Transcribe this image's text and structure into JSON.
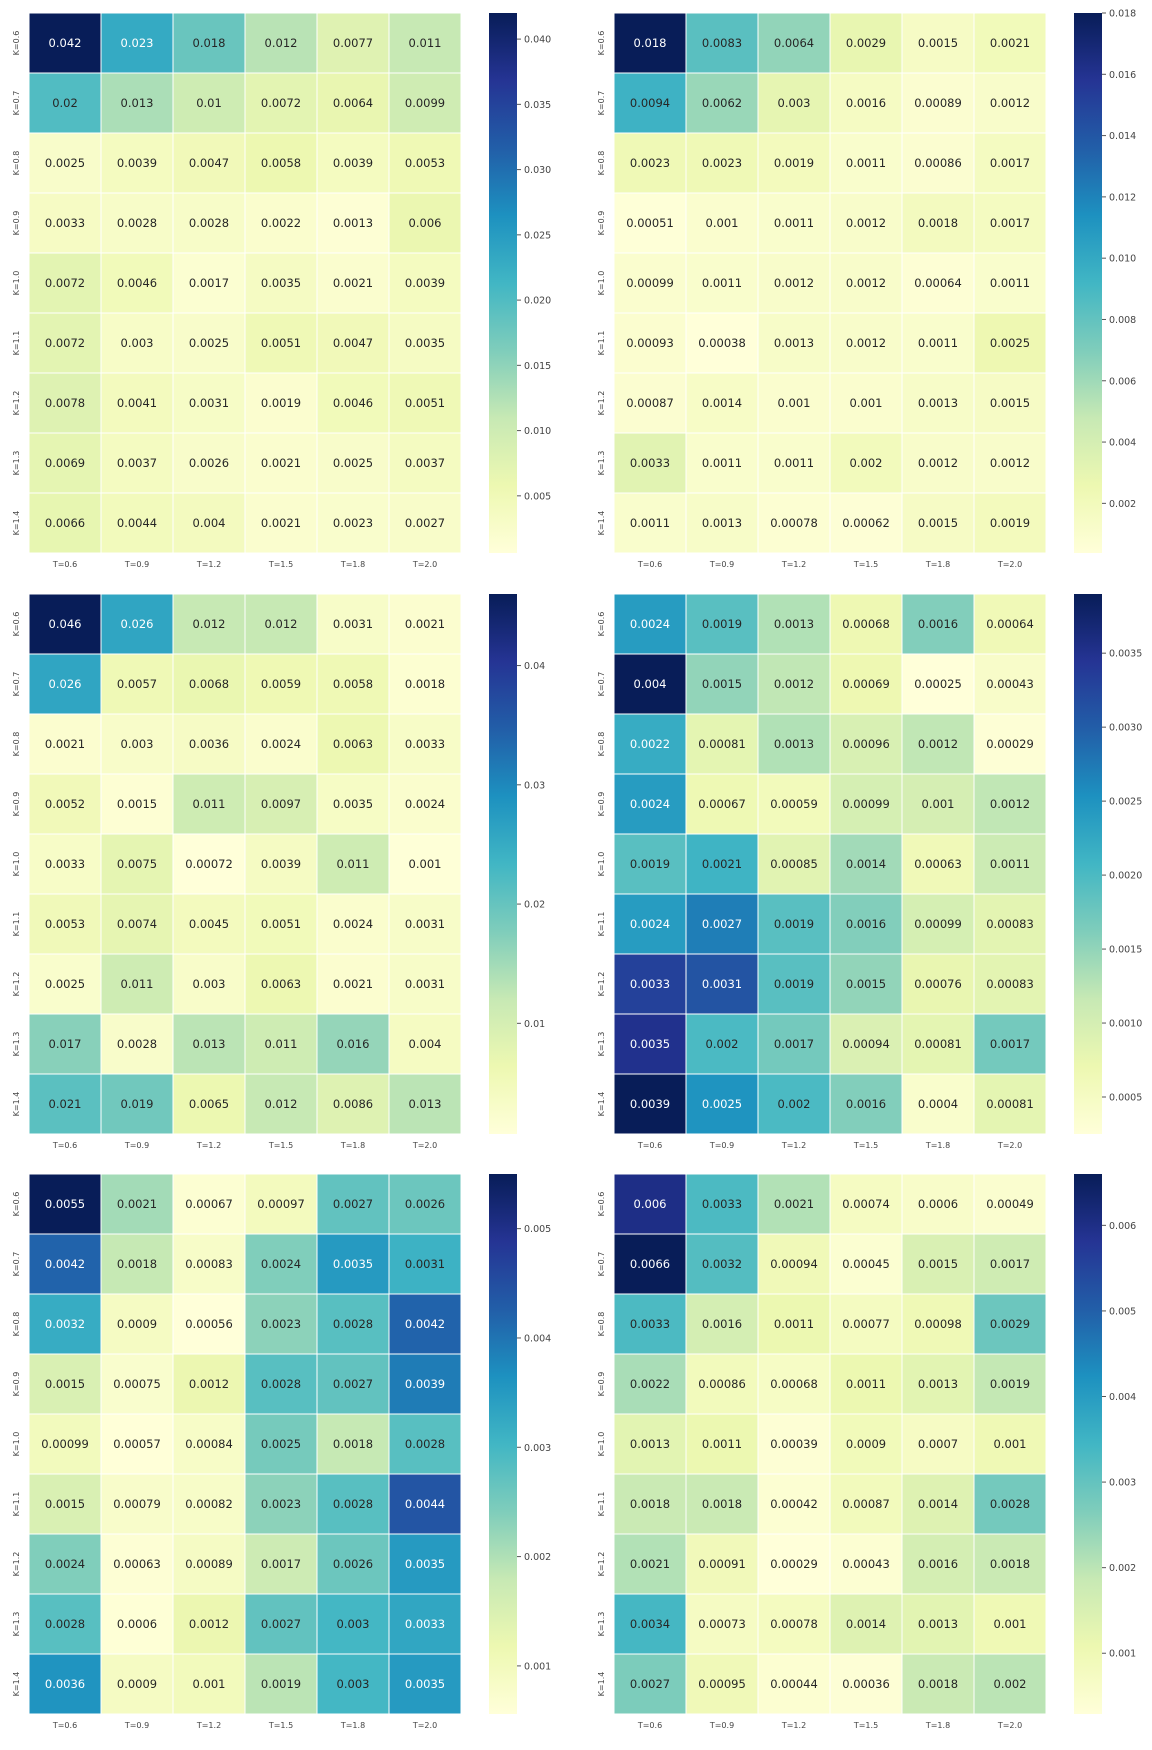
{
  "chart_data": [
    {
      "type": "heatmap",
      "x_labels": [
        "T=0.6",
        "T=0.9",
        "T=1.2",
        "T=1.5",
        "T=1.8",
        "T=2.0"
      ],
      "y_labels": [
        "K=0.6",
        "K=0.7",
        "K=0.8",
        "K=0.9",
        "K=1.0",
        "K=1.1",
        "K=1.2",
        "K=1.3",
        "K=1.4"
      ],
      "values": [
        [
          0.042,
          0.023,
          0.018,
          0.012,
          0.0077,
          0.011
        ],
        [
          0.02,
          0.013,
          0.01,
          0.0072,
          0.0064,
          0.0099
        ],
        [
          0.0025,
          0.0039,
          0.0047,
          0.0058,
          0.0039,
          0.0053
        ],
        [
          0.0033,
          0.0028,
          0.0028,
          0.0022,
          0.0013,
          0.006
        ],
        [
          0.0072,
          0.0046,
          0.0017,
          0.0035,
          0.0021,
          0.0039
        ],
        [
          0.0072,
          0.003,
          0.0025,
          0.0051,
          0.0047,
          0.0035
        ],
        [
          0.0078,
          0.0041,
          0.0031,
          0.0019,
          0.0046,
          0.0051
        ],
        [
          0.0069,
          0.0037,
          0.0026,
          0.0021,
          0.0025,
          0.0037
        ],
        [
          0.0066,
          0.0044,
          0.004,
          0.0021,
          0.0023,
          0.0027
        ]
      ],
      "colorbar_ticks": [
        "0.005",
        "0.010",
        "0.015",
        "0.020",
        "0.025",
        "0.030",
        "0.035",
        "0.040"
      ],
      "vmin": 0.00062,
      "vmax": 0.042
    },
    {
      "type": "heatmap",
      "x_labels": [
        "T=0.6",
        "T=0.9",
        "T=1.2",
        "T=1.5",
        "T=1.8",
        "T=2.0"
      ],
      "y_labels": [
        "K=0.6",
        "K=0.7",
        "K=0.8",
        "K=0.9",
        "K=1.0",
        "K=1.1",
        "K=1.2",
        "K=1.3",
        "K=1.4"
      ],
      "values": [
        [
          0.018,
          0.0083,
          0.0064,
          0.0029,
          0.0015,
          0.0021
        ],
        [
          0.0094,
          0.0062,
          0.003,
          0.0016,
          0.00089,
          0.0012
        ],
        [
          0.0023,
          0.0023,
          0.0019,
          0.0011,
          0.00086,
          0.0017
        ],
        [
          0.00051,
          0.001,
          0.0011,
          0.0012,
          0.0018,
          0.0017
        ],
        [
          0.00099,
          0.0011,
          0.0012,
          0.0012,
          0.00064,
          0.0011
        ],
        [
          0.00093,
          0.00038,
          0.0013,
          0.0012,
          0.0011,
          0.0025
        ],
        [
          0.00087,
          0.0014,
          0.001,
          0.001,
          0.0013,
          0.0015
        ],
        [
          0.0033,
          0.0011,
          0.0011,
          0.002,
          0.0012,
          0.0012
        ],
        [
          0.0011,
          0.0013,
          0.00078,
          0.00062,
          0.0015,
          0.0019
        ]
      ],
      "colorbar_ticks": [
        "0.002",
        "0.004",
        "0.006",
        "0.008",
        "0.010",
        "0.012",
        "0.014",
        "0.016",
        "0.018"
      ],
      "vmin": 0.00038,
      "vmax": 0.018
    },
    {
      "type": "heatmap",
      "x_labels": [
        "T=0.6",
        "T=0.9",
        "T=1.2",
        "T=1.5",
        "T=1.8",
        "T=2.0"
      ],
      "y_labels": [
        "K=0.6",
        "K=0.7",
        "K=0.8",
        "K=0.9",
        "K=1.0",
        "K=1.1",
        "K=1.2",
        "K=1.3",
        "K=1.4"
      ],
      "values": [
        [
          0.046,
          0.026,
          0.012,
          0.012,
          0.0031,
          0.0021
        ],
        [
          0.026,
          0.0057,
          0.0068,
          0.0059,
          0.0058,
          0.0018
        ],
        [
          0.0021,
          0.003,
          0.0036,
          0.0024,
          0.0063,
          0.0033
        ],
        [
          0.0052,
          0.0015,
          0.011,
          0.0097,
          0.0035,
          0.0024
        ],
        [
          0.0033,
          0.0075,
          0.00072,
          0.0039,
          0.011,
          0.001
        ],
        [
          0.0053,
          0.0074,
          0.0045,
          0.0051,
          0.0024,
          0.0031
        ],
        [
          0.0025,
          0.011,
          0.003,
          0.0063,
          0.0021,
          0.0031
        ],
        [
          0.017,
          0.0028,
          0.013,
          0.011,
          0.016,
          0.004
        ],
        [
          0.021,
          0.019,
          0.0065,
          0.012,
          0.0086,
          0.013
        ]
      ],
      "colorbar_ticks": [
        "0.01",
        "0.02",
        "0.03",
        "0.04"
      ],
      "vmin": 0.00072,
      "vmax": 0.046
    },
    {
      "type": "heatmap",
      "x_labels": [
        "T=0.6",
        "T=0.9",
        "T=1.2",
        "T=1.5",
        "T=1.8",
        "T=2.0"
      ],
      "y_labels": [
        "K=0.6",
        "K=0.7",
        "K=0.8",
        "K=0.9",
        "K=1.0",
        "K=1.1",
        "K=1.2",
        "K=1.3",
        "K=1.4"
      ],
      "values": [
        [
          0.0024,
          0.0019,
          0.0013,
          0.00068,
          0.0016,
          0.00064
        ],
        [
          0.004,
          0.0015,
          0.0012,
          0.00069,
          0.00025,
          0.00043
        ],
        [
          0.0022,
          0.00081,
          0.0013,
          0.00096,
          0.0012,
          0.00029
        ],
        [
          0.0024,
          0.00067,
          0.00059,
          0.00099,
          0.001,
          0.0012
        ],
        [
          0.0019,
          0.0021,
          0.00085,
          0.0014,
          0.00063,
          0.0011
        ],
        [
          0.0024,
          0.0027,
          0.0019,
          0.0016,
          0.00099,
          0.00083
        ],
        [
          0.0033,
          0.0031,
          0.0019,
          0.0015,
          0.00076,
          0.00083
        ],
        [
          0.0035,
          0.002,
          0.0017,
          0.00094,
          0.00081,
          0.0017
        ],
        [
          0.0039,
          0.0025,
          0.002,
          0.0016,
          0.0004,
          0.00081
        ]
      ],
      "colorbar_ticks": [
        "0.0005",
        "0.0010",
        "0.0015",
        "0.0020",
        "0.0025",
        "0.0030",
        "0.0035"
      ],
      "vmin": 0.00025,
      "vmax": 0.0039
    },
    {
      "type": "heatmap",
      "x_labels": [
        "T=0.6",
        "T=0.9",
        "T=1.2",
        "T=1.5",
        "T=1.8",
        "T=2.0"
      ],
      "y_labels": [
        "K=0.6",
        "K=0.7",
        "K=0.8",
        "K=0.9",
        "K=1.0",
        "K=1.1",
        "K=1.2",
        "K=1.3",
        "K=1.4"
      ],
      "values": [
        [
          0.0055,
          0.0021,
          0.00067,
          0.00097,
          0.0027,
          0.0026
        ],
        [
          0.0042,
          0.0018,
          0.00083,
          0.0024,
          0.0035,
          0.0031
        ],
        [
          0.0032,
          0.0009,
          0.00056,
          0.0023,
          0.0028,
          0.0042
        ],
        [
          0.0015,
          0.00075,
          0.0012,
          0.0028,
          0.0027,
          0.0039
        ],
        [
          0.00099,
          0.00057,
          0.00084,
          0.0025,
          0.0018,
          0.0028
        ],
        [
          0.0015,
          0.00079,
          0.00082,
          0.0023,
          0.0028,
          0.0044
        ],
        [
          0.0024,
          0.00063,
          0.00089,
          0.0017,
          0.0026,
          0.0035
        ],
        [
          0.0028,
          0.0006,
          0.0012,
          0.0027,
          0.003,
          0.0033
        ],
        [
          0.0036,
          0.0009,
          0.001,
          0.0019,
          0.003,
          0.0035
        ]
      ],
      "colorbar_ticks": [
        "0.001",
        "0.002",
        "0.003",
        "0.004",
        "0.005"
      ],
      "vmin": 0.00056,
      "vmax": 0.0055
    },
    {
      "type": "heatmap",
      "x_labels": [
        "T=0.6",
        "T=0.9",
        "T=1.2",
        "T=1.5",
        "T=1.8",
        "T=2.0"
      ],
      "y_labels": [
        "K=0.6",
        "K=0.7",
        "K=0.8",
        "K=0.9",
        "K=1.0",
        "K=1.1",
        "K=1.2",
        "K=1.3",
        "K=1.4"
      ],
      "values": [
        [
          0.006,
          0.0033,
          0.0021,
          0.00074,
          0.0006,
          0.00049
        ],
        [
          0.0066,
          0.0032,
          0.00094,
          0.00045,
          0.0015,
          0.0017
        ],
        [
          0.0033,
          0.0016,
          0.0011,
          0.00077,
          0.00098,
          0.0029
        ],
        [
          0.0022,
          0.00086,
          0.00068,
          0.0011,
          0.0013,
          0.0019
        ],
        [
          0.0013,
          0.0011,
          0.00039,
          0.0009,
          0.0007,
          0.001
        ],
        [
          0.0018,
          0.0018,
          0.00042,
          0.00087,
          0.0014,
          0.0028
        ],
        [
          0.0021,
          0.00091,
          0.00029,
          0.00043,
          0.0016,
          0.0018
        ],
        [
          0.0034,
          0.00073,
          0.00078,
          0.0014,
          0.0013,
          0.001
        ],
        [
          0.0027,
          0.00095,
          0.00044,
          0.00036,
          0.0018,
          0.002
        ]
      ],
      "colorbar_ticks": [
        "0.001",
        "0.002",
        "0.003",
        "0.004",
        "0.005",
        "0.006"
      ],
      "vmin": 0.00029,
      "vmax": 0.0066
    }
  ]
}
